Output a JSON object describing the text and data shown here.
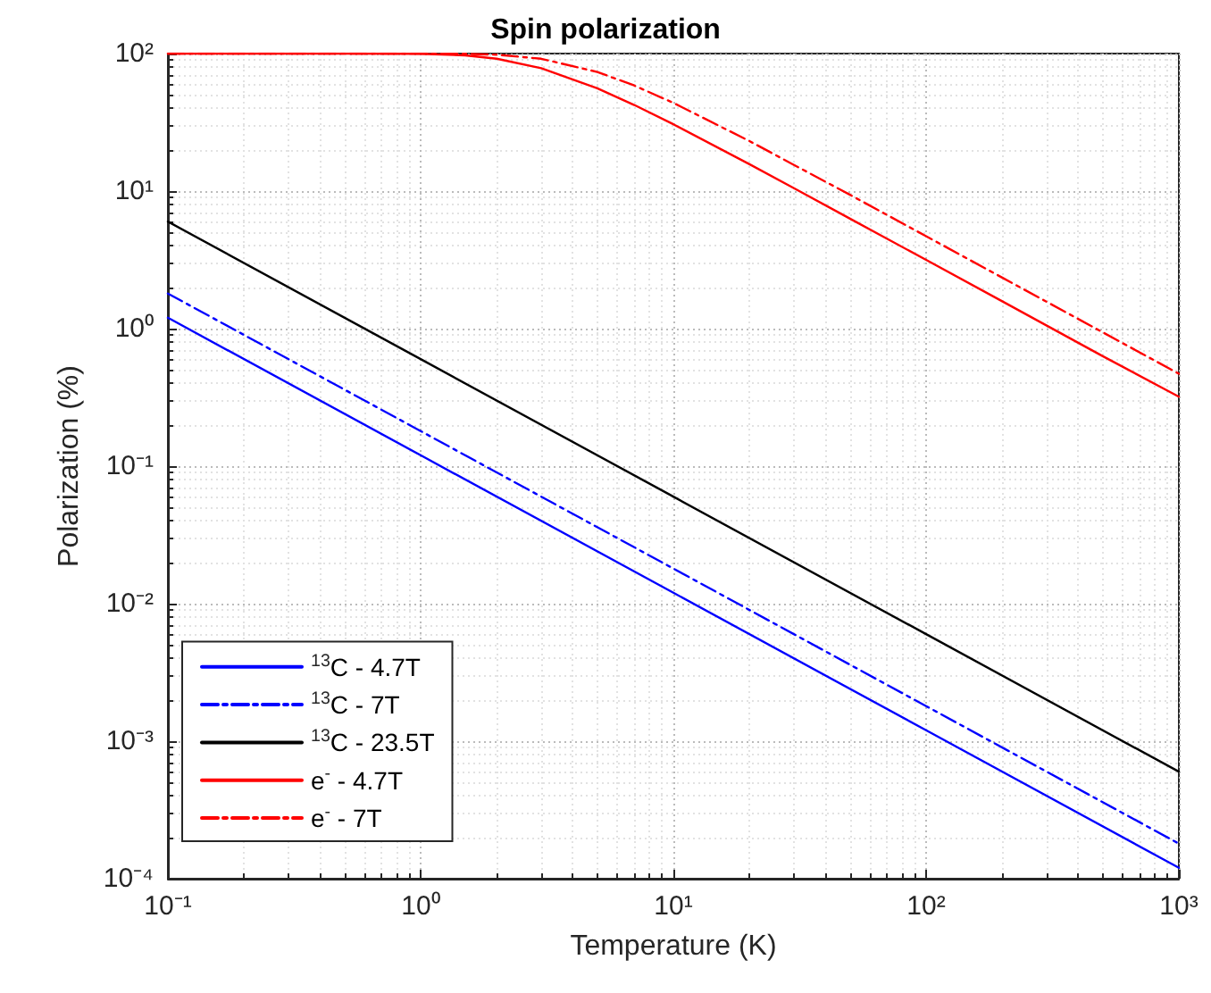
{
  "chart_data": {
    "type": "line",
    "title": "Spin polarization",
    "xlabel": "Temperature (K)",
    "ylabel": "Polarization (%)",
    "log": "xy",
    "grid": true,
    "legend": "bottom left",
    "xlim": [
      0.1,
      1000
    ],
    "xticks": [
      {
        "value": 0.1,
        "label": "10⁻¹"
      },
      {
        "value": 1,
        "label": "10⁰"
      },
      {
        "value": 10,
        "label": "10¹"
      },
      {
        "value": 100,
        "label": "10²"
      },
      {
        "value": 1000,
        "label": "10³"
      }
    ],
    "ylim": [
      0.0001,
      100
    ],
    "yticks": [
      {
        "value": 0.0001,
        "label": "10⁻⁴"
      },
      {
        "value": 0.001,
        "label": "10⁻³"
      },
      {
        "value": 0.01,
        "label": "10⁻²"
      },
      {
        "value": 0.1,
        "label": "10⁻¹"
      },
      {
        "value": 1,
        "label": "10⁰"
      },
      {
        "value": 10,
        "label": "10¹"
      },
      {
        "value": 100,
        "label": "10²"
      }
    ],
    "series": [
      {
        "name": "$^{13}$C - 4.7T",
        "color": "#0000ff",
        "line_style": "solid",
        "x": [
          0.1,
          1,
          10,
          100,
          1000
        ],
        "values": [
          1.2,
          0.12,
          0.012,
          0.0012,
          0.00012
        ]
      },
      {
        "name": "$^{13}$C - 7T",
        "color": "#0000ff",
        "line_style": "dashed",
        "x": [
          0.1,
          1,
          10,
          100,
          1000
        ],
        "values": [
          1.8,
          0.18,
          0.018,
          0.0018,
          0.00018
        ]
      },
      {
        "name": "$^{13}$C - 23.5T",
        "color": "#000000",
        "line_style": "solid",
        "x": [
          0.1,
          1,
          10,
          100,
          1000
        ],
        "values": [
          6,
          0.6,
          0.06,
          0.006,
          0.0006
        ]
      },
      {
        "name": "e$^{-}$ - 4.7T",
        "color": "#ff0000",
        "line_style": "solid",
        "x": [
          0.1,
          0.5,
          1,
          1.5,
          2,
          3,
          5,
          7,
          10,
          20,
          30,
          50,
          100,
          200,
          500,
          1000
        ],
        "values": [
          100,
          100,
          99.6,
          97.1,
          91.8,
          78.2,
          55.9,
          42.3,
          30.6,
          15.7,
          10.5,
          6.3,
          3.16,
          1.58,
          0.63,
          0.32
        ]
      },
      {
        "name": "e$^{-}$ - 7T",
        "color": "#ff0000",
        "line_style": "dashed",
        "x": [
          0.1,
          0.5,
          1,
          1.5,
          2,
          3,
          5,
          7,
          10,
          20,
          30,
          50,
          100,
          200,
          500,
          1000
        ],
        "values": [
          100,
          100,
          100,
          99.6,
          98.2,
          91.7,
          73.5,
          58.6,
          43.8,
          23.1,
          15.5,
          9.4,
          4.7,
          2.35,
          0.94,
          0.47
        ]
      }
    ]
  }
}
